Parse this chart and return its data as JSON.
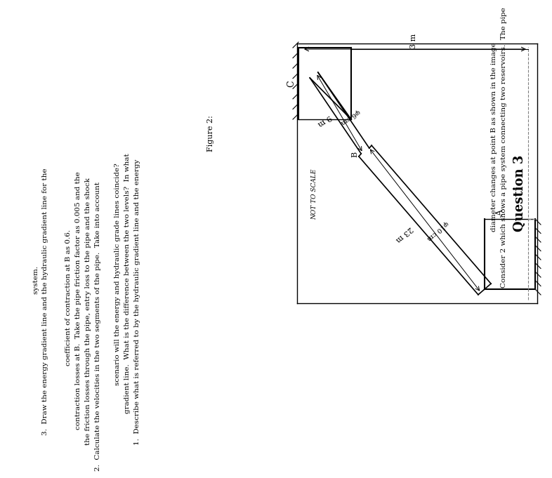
{
  "title": "Question 3",
  "body_line1": "Consider 2 which shows a pipe system connecting two reservoirs.  The pipe",
  "body_line2": "diameter changes at point B as shown in the image",
  "figure_label": "Figure 2:",
  "q1": "1.  Describe what is referred to by the hydraulic gradient line and the energy",
  "q1b": "    gradient line.  What is the difference between the two levels?  In what",
  "q1c": "    scenario will the energy and hydraulic grade lines coincide?",
  "q2": "2.  Calculate the velocities in the two segments of the pipe.  Take into account",
  "q2b": "    the friction losses through the pipe, entry loss to the pipe and the shock",
  "q2c": "    contraction losses at B.  Take the pipe friction factor as 0.005 and the",
  "q2d": "    coefficient of contraction at B as 0.6.",
  "q3": "3.  Draw the energy gradient line and the hydraulic gradient line for the",
  "q3b": "    system.",
  "not_to_scale": "NOT TO SCALE",
  "label_A": "A",
  "label_B": "B",
  "label_C": "C",
  "label_23m": "23 m",
  "label_9m": "9 m",
  "label_3m": "3 m",
  "label_phi10": "φ10 cm",
  "label_phi6": "φ6 cm",
  "bg_color": "#ffffff"
}
